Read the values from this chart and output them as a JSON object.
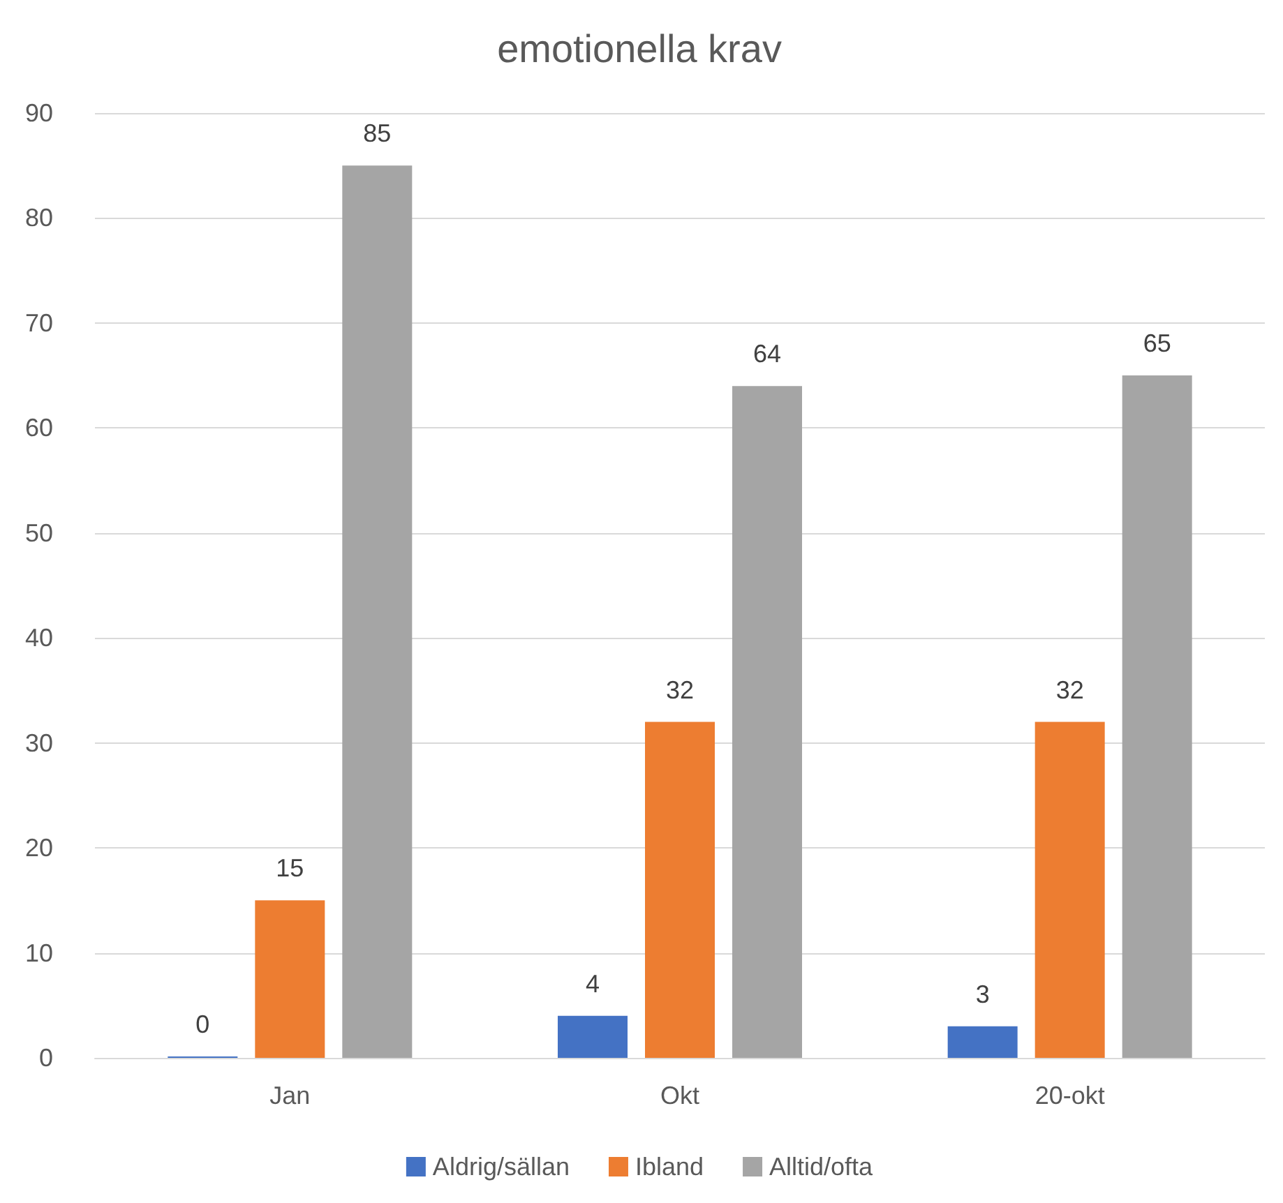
{
  "chart_data": {
    "type": "bar",
    "title": "emotionella krav",
    "categories": [
      "Jan",
      "Okt",
      "20-okt"
    ],
    "series": [
      {
        "name": "Aldrig/sällan",
        "color": "#4472c4",
        "values": [
          0,
          4,
          3
        ]
      },
      {
        "name": "Ibland",
        "color": "#ed7d31",
        "values": [
          15,
          32,
          32
        ]
      },
      {
        "name": "Alltid/ofta",
        "color": "#a5a5a5",
        "values": [
          85,
          64,
          65
        ]
      }
    ],
    "ylim": [
      0,
      90
    ],
    "yticks": [
      0,
      10,
      20,
      30,
      40,
      50,
      60,
      70,
      80,
      90
    ],
    "grid": "y",
    "legend": "bottom",
    "data_labels": true
  }
}
